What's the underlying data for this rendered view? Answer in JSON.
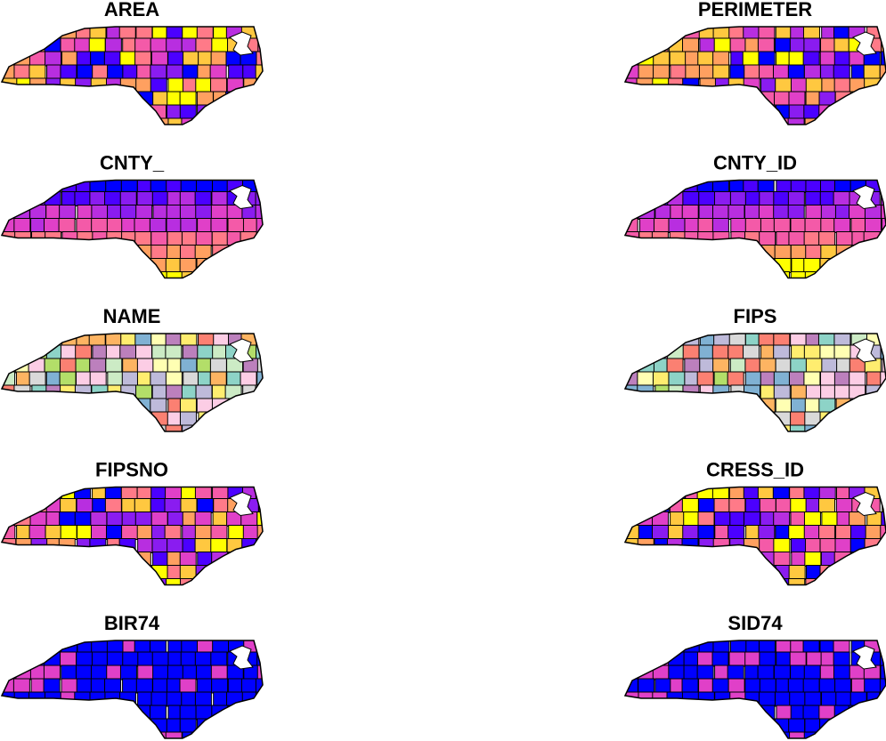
{
  "panels": [
    {
      "title": "AREA"
    },
    {
      "title": "PERIMETER"
    },
    {
      "title": "CNTY_"
    },
    {
      "title": "CNTY_ID"
    },
    {
      "title": "NAME"
    },
    {
      "title": "FIPS"
    },
    {
      "title": "FIPSNO"
    },
    {
      "title": "CRESS_ID"
    },
    {
      "title": "BIR74"
    },
    {
      "title": "SID74"
    }
  ]
}
